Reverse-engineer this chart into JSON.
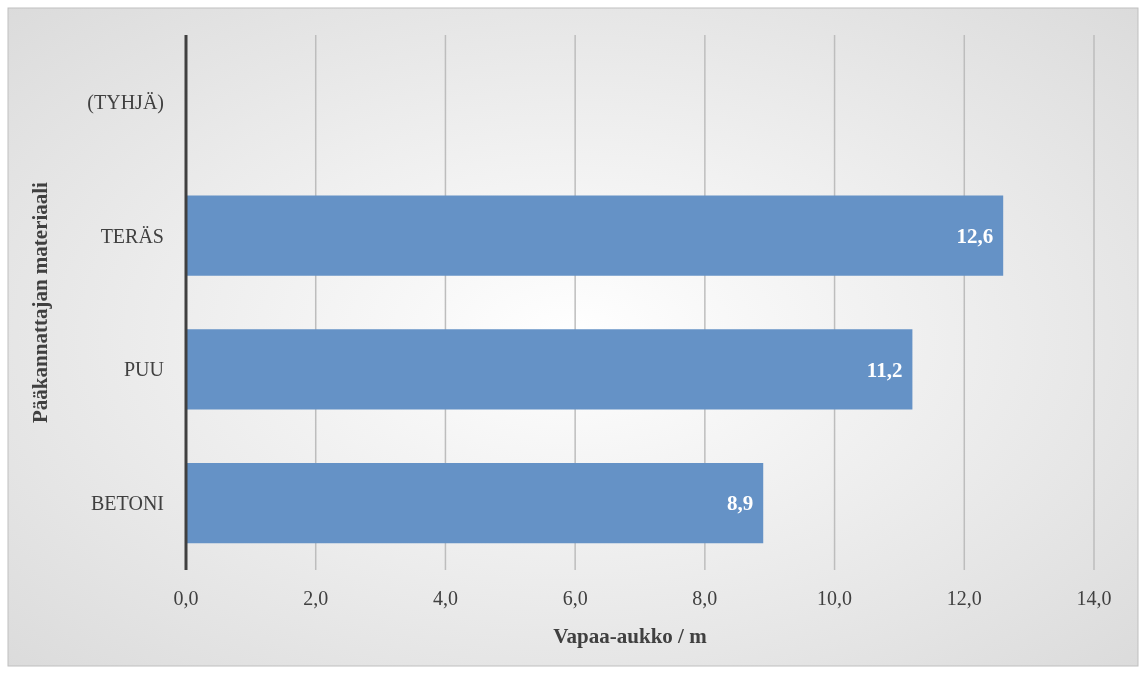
{
  "chart_data": {
    "type": "bar",
    "orientation": "horizontal",
    "xlabel": "Vapaa-aukko / m",
    "ylabel": "Pääkannattajan materiaali",
    "categories": [
      "(TYHJÄ)",
      "TERÄS",
      "PUU",
      "BETONI"
    ],
    "values": [
      null,
      12.6,
      11.2,
      8.9
    ],
    "color": "#6592c6",
    "value_labels": [
      null,
      "12,6",
      "11,2",
      "8,9"
    ],
    "xlim": [
      0,
      14
    ],
    "xticks": [
      {
        "value": 0,
        "label": "0,0"
      },
      {
        "value": 2,
        "label": "2,0"
      },
      {
        "value": 4,
        "label": "4,0"
      },
      {
        "value": 6,
        "label": "6,0"
      },
      {
        "value": 8,
        "label": "8,0"
      },
      {
        "value": 10,
        "label": "10,0"
      },
      {
        "value": 12,
        "label": "12,0"
      },
      {
        "value": 14,
        "label": "14,0"
      }
    ],
    "grid": "x"
  }
}
